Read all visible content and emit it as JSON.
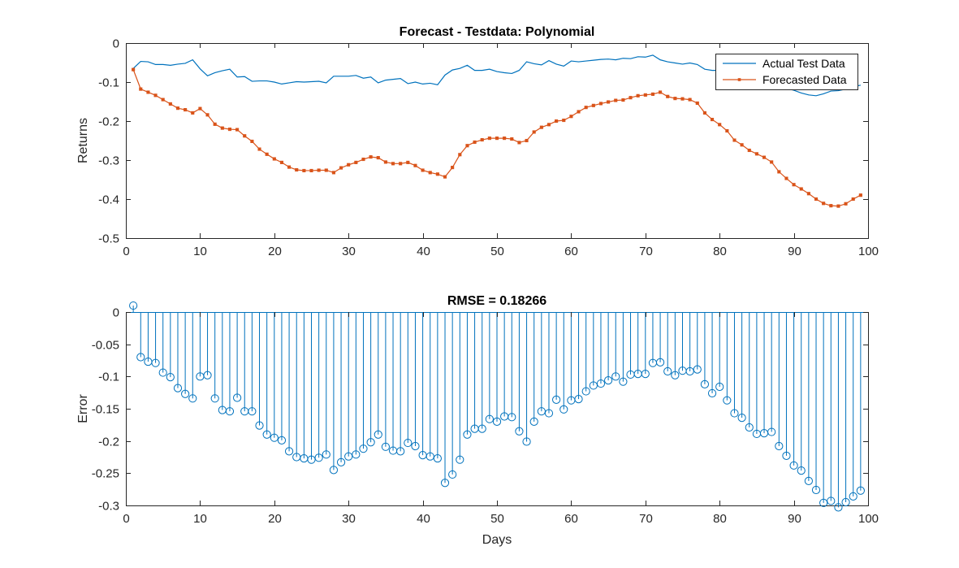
{
  "colors": {
    "actual": "#0072BD",
    "forecast": "#D95319",
    "stem": "#0072BD",
    "axis": "#262626"
  },
  "chart_data": [
    {
      "type": "line",
      "title": "Forecast - Testdata: Polynomial",
      "xlabel": "",
      "ylabel": "Returns",
      "xlim": [
        0,
        100
      ],
      "ylim": [
        -0.5,
        0
      ],
      "xticks": [
        0,
        10,
        20,
        30,
        40,
        50,
        60,
        70,
        80,
        90,
        100
      ],
      "xtick_labels": [
        "0",
        "10",
        "20",
        "30",
        "40",
        "50",
        "60",
        "70",
        "80",
        "90",
        "100"
      ],
      "yticks": [
        -0.5,
        -0.4,
        -0.3,
        -0.2,
        -0.1,
        0
      ],
      "ytick_labels": [
        "-0.5",
        "-0.4",
        "-0.3",
        "-0.2",
        "-0.1",
        "0"
      ],
      "grid": false,
      "legend_position": "top-right",
      "x_start": 1,
      "series": [
        {
          "name": "Actual Test Data",
          "marker": "none",
          "values": [
            -0.065,
            -0.047,
            -0.048,
            -0.055,
            -0.055,
            -0.057,
            -0.054,
            -0.052,
            -0.043,
            -0.066,
            -0.084,
            -0.076,
            -0.071,
            -0.067,
            -0.087,
            -0.086,
            -0.098,
            -0.097,
            -0.097,
            -0.1,
            -0.105,
            -0.102,
            -0.099,
            -0.1,
            -0.099,
            -0.098,
            -0.102,
            -0.085,
            -0.085,
            -0.085,
            -0.083,
            -0.09,
            -0.087,
            -0.102,
            -0.095,
            -0.093,
            -0.091,
            -0.104,
            -0.1,
            -0.105,
            -0.103,
            -0.107,
            -0.082,
            -0.069,
            -0.065,
            -0.057,
            -0.07,
            -0.07,
            -0.067,
            -0.073,
            -0.076,
            -0.078,
            -0.07,
            -0.048,
            -0.053,
            -0.056,
            -0.045,
            -0.054,
            -0.059,
            -0.046,
            -0.048,
            -0.046,
            -0.044,
            -0.042,
            -0.041,
            -0.043,
            -0.039,
            -0.04,
            -0.035,
            -0.036,
            -0.031,
            -0.043,
            -0.048,
            -0.051,
            -0.054,
            -0.051,
            -0.055,
            -0.067,
            -0.07,
            -0.07,
            -0.078,
            -0.092,
            -0.098,
            -0.103,
            -0.104,
            -0.106,
            -0.108,
            -0.113,
            -0.116,
            -0.121,
            -0.128,
            -0.133,
            -0.135,
            -0.13,
            -0.123,
            -0.122,
            -0.118,
            -0.112,
            -0.108
          ]
        },
        {
          "name": "Forecasted Data",
          "marker": "square",
          "values": [
            -0.068,
            -0.118,
            -0.126,
            -0.134,
            -0.145,
            -0.156,
            -0.167,
            -0.171,
            -0.179,
            -0.168,
            -0.184,
            -0.208,
            -0.218,
            -0.221,
            -0.222,
            -0.238,
            -0.252,
            -0.272,
            -0.285,
            -0.297,
            -0.306,
            -0.318,
            -0.325,
            -0.327,
            -0.327,
            -0.326,
            -0.326,
            -0.332,
            -0.32,
            -0.312,
            -0.306,
            -0.298,
            -0.292,
            -0.294,
            -0.305,
            -0.309,
            -0.309,
            -0.306,
            -0.314,
            -0.326,
            -0.332,
            -0.336,
            -0.343,
            -0.319,
            -0.286,
            -0.263,
            -0.254,
            -0.248,
            -0.244,
            -0.244,
            -0.244,
            -0.246,
            -0.255,
            -0.25,
            -0.228,
            -0.216,
            -0.209,
            -0.2,
            -0.198,
            -0.188,
            -0.176,
            -0.165,
            -0.16,
            -0.155,
            -0.151,
            -0.147,
            -0.146,
            -0.14,
            -0.135,
            -0.133,
            -0.131,
            -0.126,
            -0.137,
            -0.142,
            -0.143,
            -0.145,
            -0.154,
            -0.179,
            -0.196,
            -0.209,
            -0.225,
            -0.249,
            -0.261,
            -0.275,
            -0.284,
            -0.293,
            -0.305,
            -0.33,
            -0.347,
            -0.363,
            -0.374,
            -0.386,
            -0.4,
            -0.411,
            -0.417,
            -0.418,
            -0.412,
            -0.4,
            -0.39
          ]
        }
      ]
    },
    {
      "type": "stem",
      "title": "RMSE = 0.18266",
      "xlabel": "Days",
      "ylabel": "Error",
      "xlim": [
        0,
        100
      ],
      "ylim": [
        -0.3,
        0
      ],
      "xticks": [
        0,
        10,
        20,
        30,
        40,
        50,
        60,
        70,
        80,
        90,
        100
      ],
      "xtick_labels": [
        "0",
        "10",
        "20",
        "30",
        "40",
        "50",
        "60",
        "70",
        "80",
        "90",
        "100"
      ],
      "yticks": [
        -0.3,
        -0.25,
        -0.2,
        -0.15,
        -0.1,
        -0.05,
        0
      ],
      "ytick_labels": [
        "-0.3",
        "-0.25",
        "-0.2",
        "-0.15",
        "-0.1",
        "-0.05",
        "0"
      ],
      "grid": false,
      "x_start": 1,
      "series": [
        {
          "marker": "circle",
          "values": [
            0.01,
            -0.07,
            -0.077,
            -0.079,
            -0.094,
            -0.101,
            -0.118,
            -0.127,
            -0.134,
            -0.1,
            -0.098,
            -0.134,
            -0.152,
            -0.154,
            -0.133,
            -0.154,
            -0.154,
            -0.176,
            -0.19,
            -0.195,
            -0.199,
            -0.216,
            -0.225,
            -0.227,
            -0.229,
            -0.226,
            -0.221,
            -0.245,
            -0.233,
            -0.224,
            -0.221,
            -0.212,
            -0.202,
            -0.19,
            -0.209,
            -0.215,
            -0.216,
            -0.203,
            -0.208,
            -0.222,
            -0.224,
            -0.227,
            -0.265,
            -0.252,
            -0.229,
            -0.19,
            -0.181,
            -0.181,
            -0.166,
            -0.17,
            -0.162,
            -0.163,
            -0.185,
            -0.201,
            -0.17,
            -0.154,
            -0.157,
            -0.136,
            -0.151,
            -0.137,
            -0.135,
            -0.123,
            -0.114,
            -0.111,
            -0.106,
            -0.1,
            -0.108,
            -0.097,
            -0.096,
            -0.096,
            -0.079,
            -0.078,
            -0.092,
            -0.098,
            -0.091,
            -0.092,
            -0.089,
            -0.112,
            -0.126,
            -0.116,
            -0.137,
            -0.157,
            -0.164,
            -0.179,
            -0.189,
            -0.188,
            -0.186,
            -0.208,
            -0.223,
            -0.238,
            -0.246,
            -0.262,
            -0.276,
            -0.296,
            -0.293,
            -0.303,
            -0.295,
            -0.286,
            -0.277
          ]
        }
      ]
    }
  ]
}
